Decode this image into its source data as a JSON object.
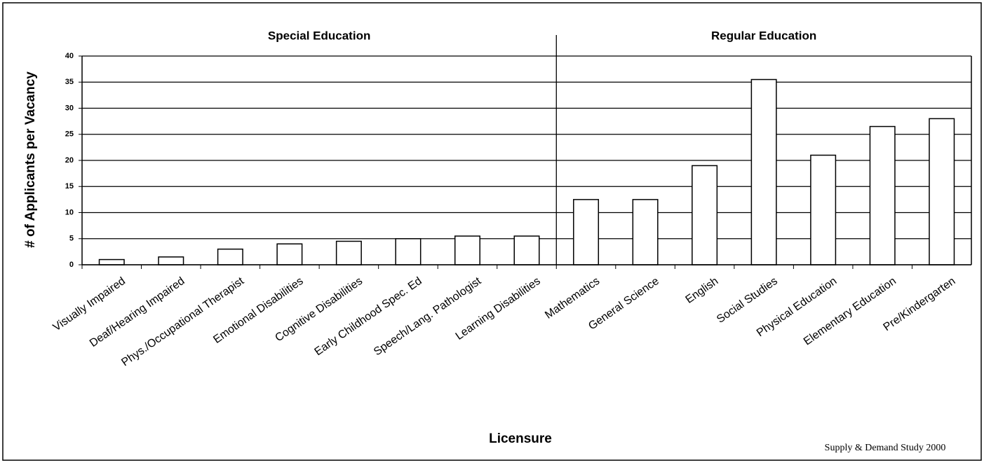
{
  "chart_data": {
    "type": "bar",
    "y_label": "# of Applicants per Vacancy",
    "x_label": "Licensure",
    "source": "Supply & Demand Study 2000",
    "groups": [
      {
        "name": "Special Education",
        "count": 8
      },
      {
        "name": "Regular Education",
        "count": 7
      }
    ],
    "categories": [
      "Visually Impaired",
      "Deaf/Hearing Impaired",
      "Phys./Occupational Therapist",
      "Emotional Disabilities",
      "Cognitive Disabilities",
      "Early Childhood Spec. Ed",
      "Speech/Lang. Pathologist",
      "Learning Disabilities",
      "Mathematics",
      "General Science",
      "English",
      "Social Studies",
      "Physical Education",
      "Elementary Education",
      "Pre/Kindergarten"
    ],
    "values": [
      1,
      1.5,
      3,
      4,
      4.5,
      5,
      5.5,
      5.5,
      12.5,
      12.5,
      19,
      35.5,
      21,
      26.5,
      28
    ],
    "color": "#ffffff",
    "ylim": [
      0,
      40
    ],
    "yticks": [
      0,
      5,
      10,
      15,
      20,
      25,
      30,
      35,
      40
    ],
    "grid": true
  }
}
